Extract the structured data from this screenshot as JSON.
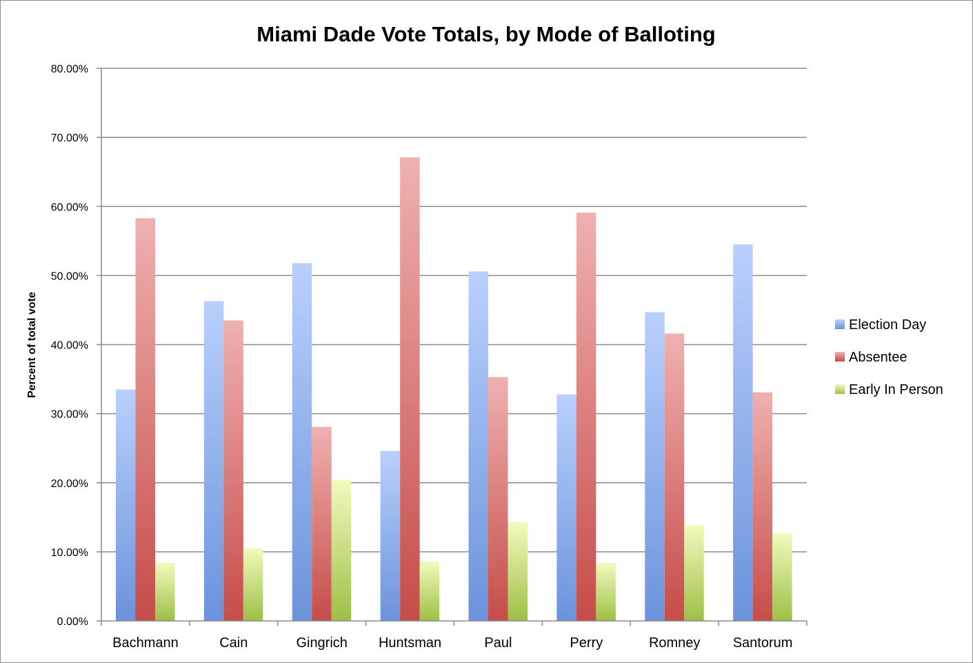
{
  "chart_data": {
    "type": "bar",
    "title": "Miami Dade Vote Totals, by Mode of Balloting",
    "xlabel": "",
    "ylabel": "Percent of total vote",
    "ylim": [
      0,
      80
    ],
    "y_ticks": [
      "0.00%",
      "10.00%",
      "20.00%",
      "30.00%",
      "40.00%",
      "50.00%",
      "60.00%",
      "70.00%",
      "80.00%"
    ],
    "grid": true,
    "legend_position": "right",
    "categories": [
      "Bachmann",
      "Cain",
      "Gingrich",
      "Huntsman",
      "Paul",
      "Perry",
      "Romney",
      "Santorum"
    ],
    "series": [
      {
        "name": "Election Day",
        "color": "#6f96dc",
        "values": [
          33.5,
          46.3,
          51.8,
          24.6,
          50.6,
          32.8,
          44.7,
          54.5
        ]
      },
      {
        "name": "Absentee",
        "color": "#c9504d",
        "values": [
          58.3,
          43.5,
          28.1,
          67.1,
          35.3,
          59.1,
          41.6,
          33.1
        ]
      },
      {
        "name": "Early In Person",
        "color": "#a3c34c",
        "values": [
          8.4,
          10.5,
          20.4,
          8.6,
          14.3,
          8.4,
          13.9,
          12.7
        ]
      }
    ]
  }
}
